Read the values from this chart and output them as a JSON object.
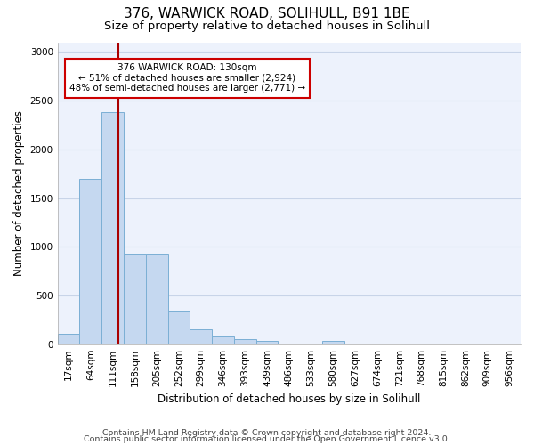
{
  "title1": "376, WARWICK ROAD, SOLIHULL, B91 1BE",
  "title2": "Size of property relative to detached houses in Solihull",
  "xlabel": "Distribution of detached houses by size in Solihull",
  "ylabel": "Number of detached properties",
  "categories": [
    "17sqm",
    "64sqm",
    "111sqm",
    "158sqm",
    "205sqm",
    "252sqm",
    "299sqm",
    "346sqm",
    "393sqm",
    "439sqm",
    "486sqm",
    "533sqm",
    "580sqm",
    "627sqm",
    "674sqm",
    "721sqm",
    "768sqm",
    "815sqm",
    "862sqm",
    "909sqm",
    "956sqm"
  ],
  "values": [
    110,
    1700,
    2380,
    930,
    930,
    340,
    150,
    75,
    55,
    30,
    0,
    0,
    30,
    0,
    0,
    0,
    0,
    0,
    0,
    0,
    0
  ],
  "bar_color": "#c5d8f0",
  "bar_edge_color": "#7bafd4",
  "vline_color": "#aa0000",
  "annotation_text": "376 WARWICK ROAD: 130sqm\n← 51% of detached houses are smaller (2,924)\n48% of semi-detached houses are larger (2,771) →",
  "annotation_box_color": "white",
  "annotation_box_edge": "#cc0000",
  "ylim": [
    0,
    3100
  ],
  "grid_color": "#c8d4e8",
  "background_color": "#edf2fc",
  "footer1": "Contains HM Land Registry data © Crown copyright and database right 2024.",
  "footer2": "Contains public sector information licensed under the Open Government Licence v3.0.",
  "title1_fontsize": 11,
  "title2_fontsize": 9.5,
  "axis_label_fontsize": 8.5,
  "tick_fontsize": 7.5,
  "footer_fontsize": 6.8
}
